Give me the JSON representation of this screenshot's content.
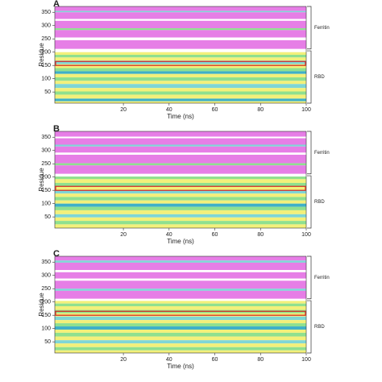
{
  "chart_data": [
    {
      "type": "stripes",
      "panel": "A",
      "ylabel": "Residue",
      "xlabel": "Time (ns)",
      "xlim": [
        -10,
        100
      ],
      "xticks": [
        20,
        40,
        60,
        80,
        100
      ],
      "ylim": [
        8,
        372
      ],
      "yticks": [
        50,
        100,
        150,
        200,
        250,
        300,
        350
      ],
      "highlight": [
        150,
        165
      ],
      "highlight_color": "#d62020",
      "brackets": [
        {
          "label": "Ferritin",
          "range": [
            212,
            372
          ]
        },
        {
          "label": "RBD",
          "range": [
            8,
            205
          ]
        }
      ],
      "stripes": [
        [
          355,
          372,
          "#e67ee6"
        ],
        [
          350,
          355,
          "#7fd6d6"
        ],
        [
          325,
          350,
          "#e67ee6"
        ],
        [
          318,
          325,
          "#ffffff"
        ],
        [
          290,
          318,
          "#e67ee6"
        ],
        [
          283,
          290,
          "#8fe08f"
        ],
        [
          255,
          283,
          "#e67ee6"
        ],
        [
          245,
          255,
          "#ffffff"
        ],
        [
          212,
          245,
          "#e67ee6"
        ],
        [
          200,
          212,
          "#ffffff"
        ],
        [
          190,
          200,
          "#f3f07a"
        ],
        [
          180,
          190,
          "#8fe08f"
        ],
        [
          168,
          180,
          "#f3f07a"
        ],
        [
          155,
          168,
          "#7fd6d6"
        ],
        [
          140,
          155,
          "#f3f07a"
        ],
        [
          128,
          140,
          "#8fe08f"
        ],
        [
          118,
          128,
          "#3fb0c8"
        ],
        [
          105,
          118,
          "#f3f07a"
        ],
        [
          92,
          105,
          "#8fe08f"
        ],
        [
          80,
          92,
          "#f3f07a"
        ],
        [
          65,
          80,
          "#7fd6d6"
        ],
        [
          52,
          65,
          "#f3f07a"
        ],
        [
          40,
          52,
          "#8fe08f"
        ],
        [
          25,
          40,
          "#f3f07a"
        ],
        [
          15,
          25,
          "#3fb0c8"
        ],
        [
          8,
          15,
          "#f3f07a"
        ]
      ]
    },
    {
      "type": "stripes",
      "panel": "B",
      "ylabel": "Residue",
      "xlabel": "Time (ns)",
      "xlim": [
        -10,
        100
      ],
      "xticks": [
        20,
        40,
        60,
        80,
        100
      ],
      "ylim": [
        8,
        372
      ],
      "yticks": [
        50,
        100,
        150,
        200,
        250,
        300,
        350
      ],
      "highlight": [
        150,
        165
      ],
      "highlight_color": "#d62020",
      "brackets": [
        {
          "label": "Ferritin",
          "range": [
            212,
            372
          ]
        },
        {
          "label": "RBD",
          "range": [
            8,
            205
          ]
        }
      ],
      "stripes": [
        [
          352,
          372,
          "#e67ee6"
        ],
        [
          346,
          352,
          "#ffffff"
        ],
        [
          322,
          346,
          "#e67ee6"
        ],
        [
          315,
          322,
          "#7fd6d6"
        ],
        [
          292,
          315,
          "#e67ee6"
        ],
        [
          284,
          292,
          "#ffffff"
        ],
        [
          252,
          284,
          "#e67ee6"
        ],
        [
          244,
          252,
          "#8fe08f"
        ],
        [
          212,
          244,
          "#e67ee6"
        ],
        [
          202,
          212,
          "#ffffff"
        ],
        [
          192,
          202,
          "#8fe08f"
        ],
        [
          178,
          192,
          "#f3f07a"
        ],
        [
          165,
          178,
          "#8fe08f"
        ],
        [
          150,
          165,
          "#f3f07a"
        ],
        [
          138,
          150,
          "#7fd6d6"
        ],
        [
          125,
          138,
          "#f3f07a"
        ],
        [
          112,
          125,
          "#8fe08f"
        ],
        [
          100,
          112,
          "#f3f07a"
        ],
        [
          88,
          100,
          "#3fb0c8"
        ],
        [
          75,
          88,
          "#8fe08f"
        ],
        [
          60,
          75,
          "#f3f07a"
        ],
        [
          48,
          60,
          "#7fd6d6"
        ],
        [
          35,
          48,
          "#f3f07a"
        ],
        [
          22,
          35,
          "#8fe08f"
        ],
        [
          8,
          22,
          "#f3f07a"
        ]
      ]
    },
    {
      "type": "stripes",
      "panel": "C",
      "ylabel": "Residue",
      "xlabel": "Time (ns)",
      "xlim": [
        -10,
        100
      ],
      "xticks": [
        20,
        40,
        60,
        80,
        100
      ],
      "ylim": [
        8,
        372
      ],
      "yticks": [
        50,
        100,
        150,
        200,
        250,
        300,
        350
      ],
      "highlight": [
        150,
        165
      ],
      "highlight_color": "#d62020",
      "brackets": [
        {
          "label": "Ferritin",
          "range": [
            212,
            372
          ]
        },
        {
          "label": "RBD",
          "range": [
            8,
            205
          ]
        }
      ],
      "stripes": [
        [
          356,
          372,
          "#e67ee6"
        ],
        [
          348,
          356,
          "#7fd6d6"
        ],
        [
          320,
          348,
          "#e67ee6"
        ],
        [
          312,
          320,
          "#ffffff"
        ],
        [
          288,
          312,
          "#e67ee6"
        ],
        [
          280,
          288,
          "#ffffff"
        ],
        [
          250,
          280,
          "#e67ee6"
        ],
        [
          242,
          250,
          "#7fd6d6"
        ],
        [
          212,
          242,
          "#e67ee6"
        ],
        [
          204,
          212,
          "#ffffff"
        ],
        [
          194,
          204,
          "#f3f07a"
        ],
        [
          184,
          194,
          "#8fe08f"
        ],
        [
          170,
          184,
          "#f3f07a"
        ],
        [
          158,
          170,
          "#8fe08f"
        ],
        [
          145,
          158,
          "#f3f07a"
        ],
        [
          132,
          145,
          "#7fd6d6"
        ],
        [
          120,
          132,
          "#f3f07a"
        ],
        [
          108,
          120,
          "#8fe08f"
        ],
        [
          96,
          108,
          "#3fb0c8"
        ],
        [
          84,
          96,
          "#f3f07a"
        ],
        [
          70,
          84,
          "#8fe08f"
        ],
        [
          56,
          70,
          "#f3f07a"
        ],
        [
          44,
          56,
          "#7fd6d6"
        ],
        [
          30,
          44,
          "#f3f07a"
        ],
        [
          18,
          30,
          "#8fe08f"
        ],
        [
          8,
          18,
          "#f3f07a"
        ]
      ]
    }
  ]
}
